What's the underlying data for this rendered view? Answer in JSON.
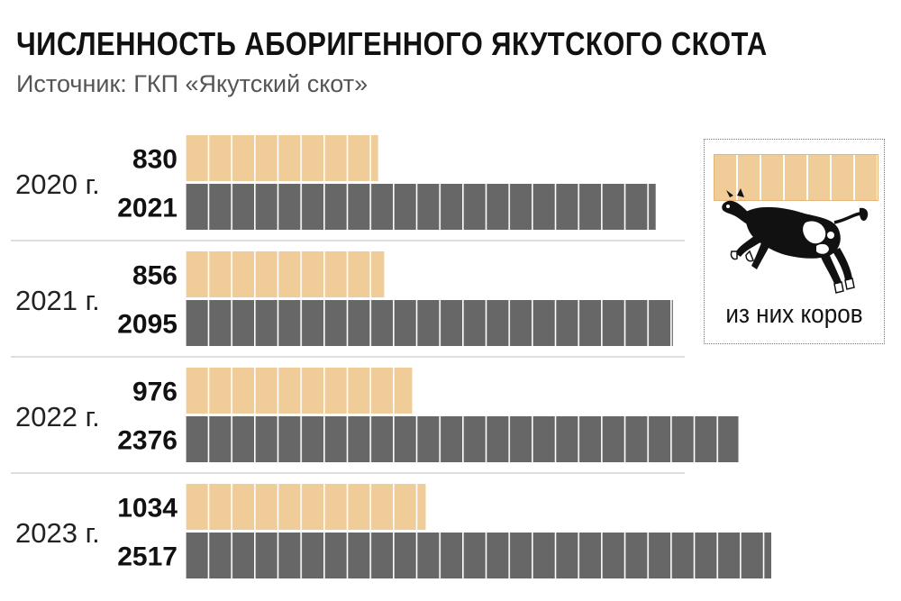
{
  "title": "ЧИСЛЕННОСТЬ АБОРИГЕННОГО ЯКУТСКОГО СКОТА",
  "subtitle": "Источник: ГКП «Якутский скот»",
  "colors": {
    "cows": "#f0cc98",
    "total": "#676767",
    "divider": "#bdbdbd"
  },
  "legend": {
    "label": "из них коров",
    "icon": "cow-icon"
  },
  "chart_data": {
    "type": "bar",
    "orientation": "horizontal",
    "categories": [
      "2020 г.",
      "2021 г.",
      "2022 г.",
      "2023 г."
    ],
    "series": [
      {
        "name": "из них коров",
        "values": [
          830,
          856,
          976,
          1034
        ]
      },
      {
        "values": [
          2021,
          2095,
          2376,
          2517
        ]
      }
    ],
    "value_labels": {
      "cows": [
        "830",
        "856",
        "976",
        "1034"
      ],
      "total": [
        "2021",
        "2095",
        "2376",
        "2517"
      ]
    },
    "xlim": [
      0,
      2517
    ],
    "grid": false
  }
}
